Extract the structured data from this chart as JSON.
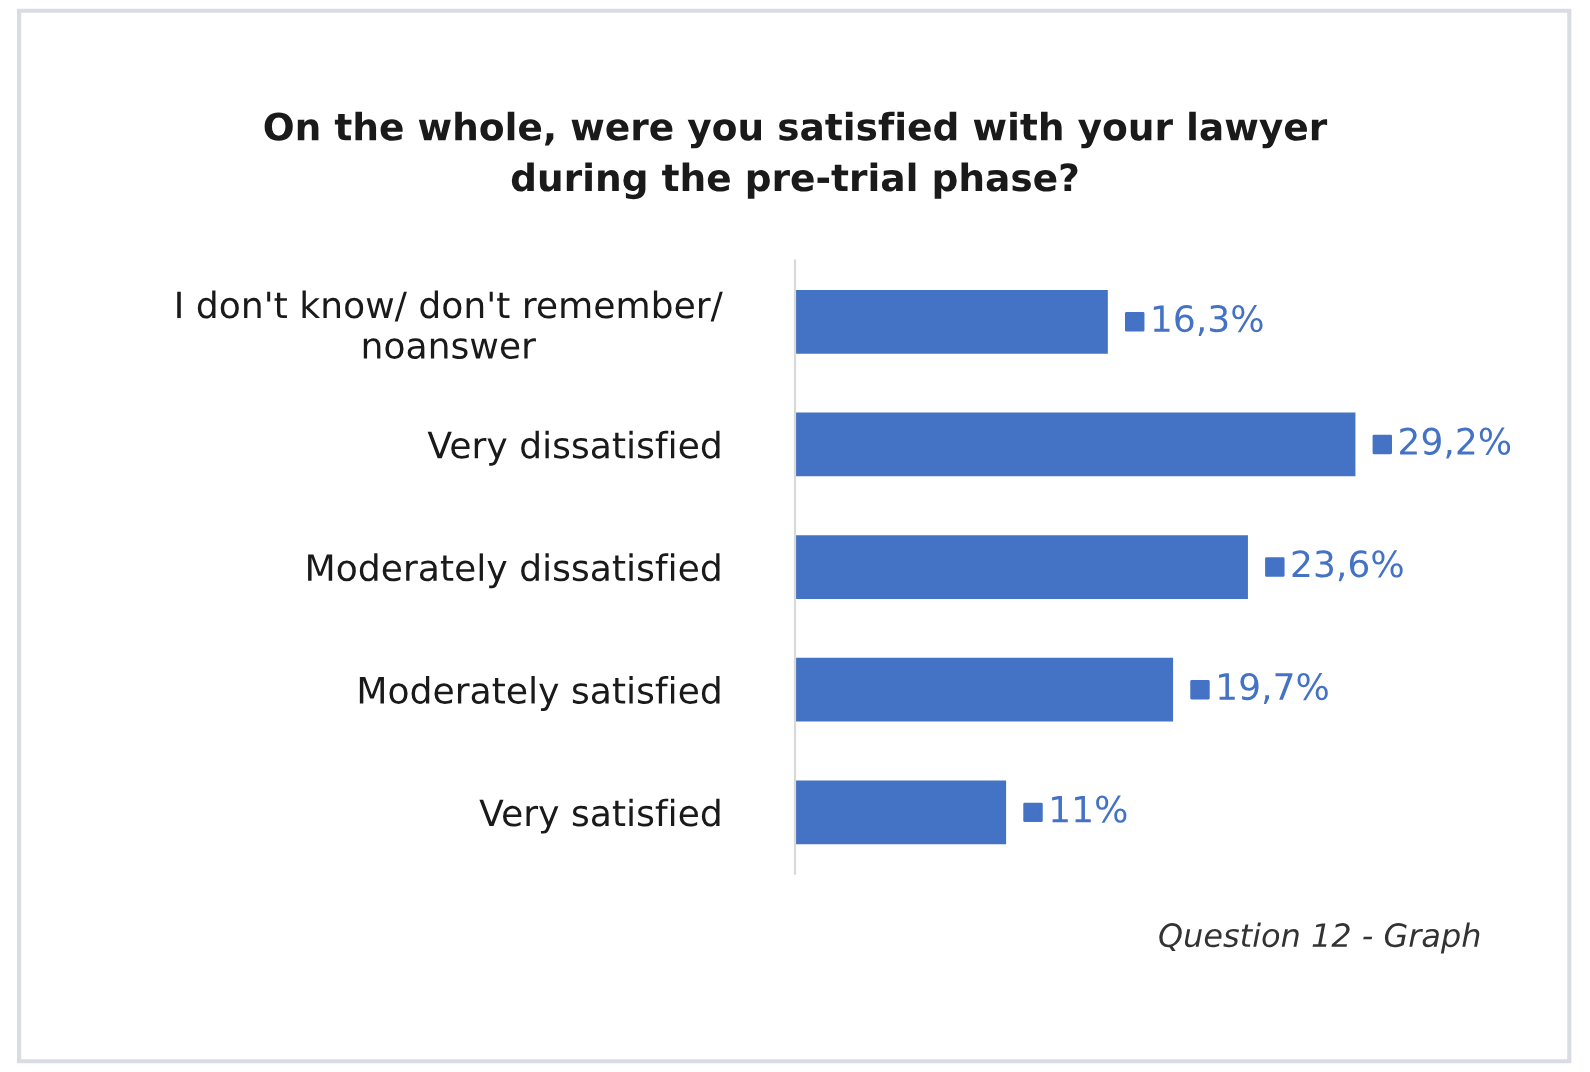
{
  "chart_data": {
    "type": "bar",
    "orientation": "horizontal",
    "title": "On the whole, were you satisfied with your lawyer\nduring the pre-trial phase?",
    "categories": [
      "I don't know/ don't remember/\nnoanswer",
      "Very dissatisfied",
      "Moderately dissatisfied",
      "Moderately satisfied",
      "Very satisfied"
    ],
    "values": [
      16.3,
      29.2,
      23.6,
      19.7,
      11
    ],
    "value_labels": [
      "16,3%",
      "29,2%",
      "23,6%",
      "19,7%",
      "11%"
    ],
    "color": "#4472c4",
    "grid": false,
    "legend": false,
    "annotations": [
      "Question 12 - Graph"
    ]
  }
}
